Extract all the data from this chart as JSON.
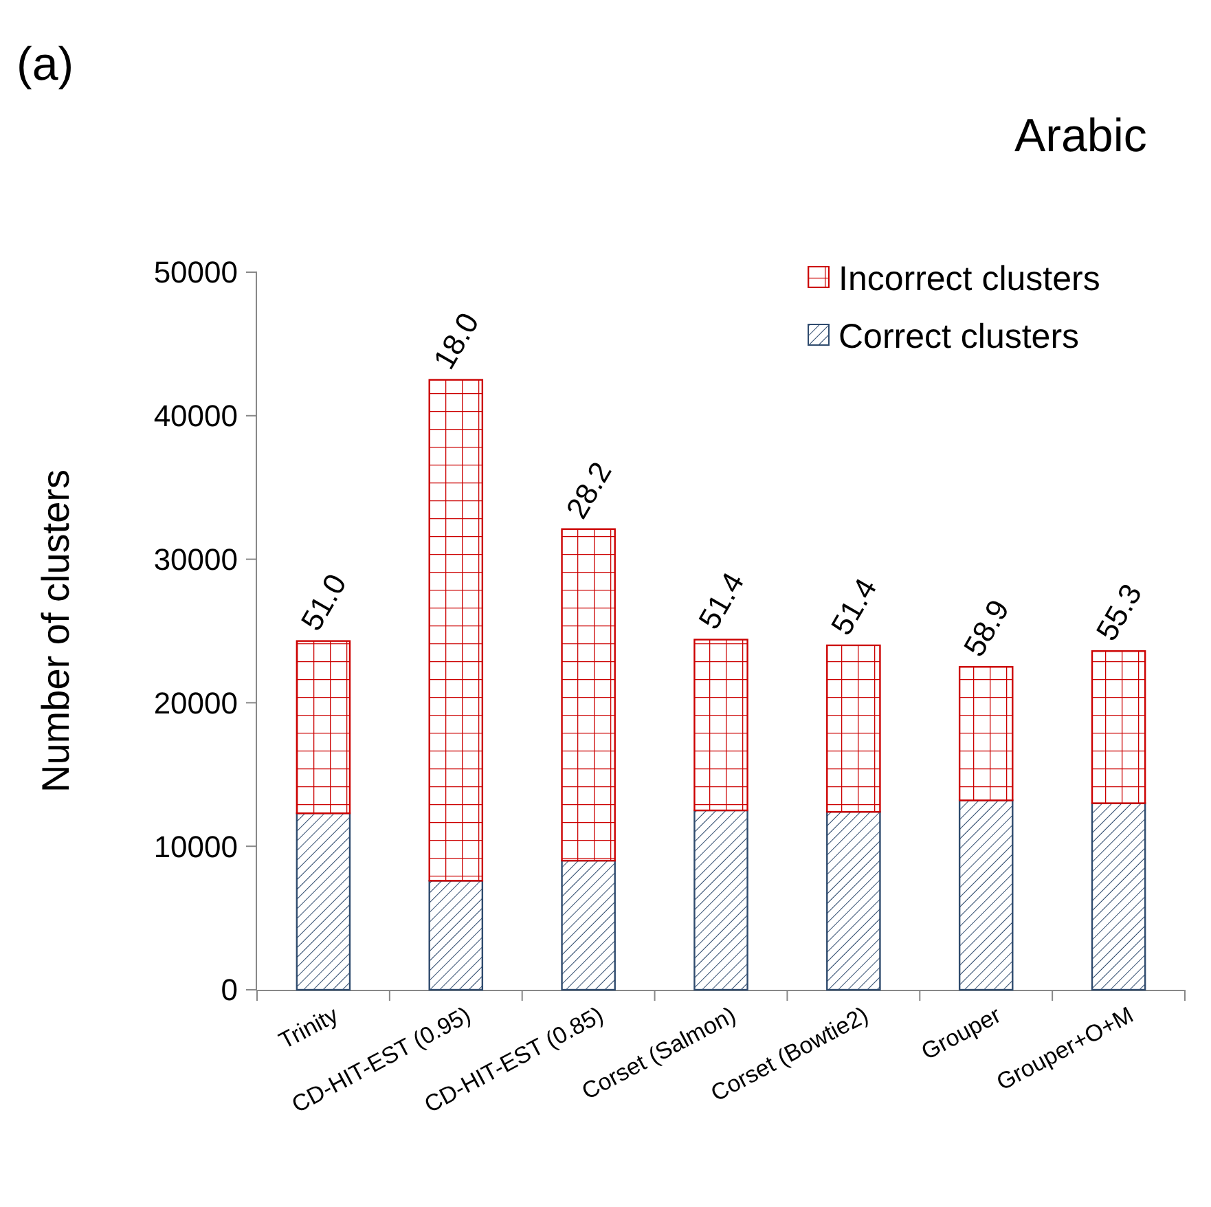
{
  "chart_data": {
    "type": "bar",
    "title": "Arabic",
    "ylabel": "Number of clusters",
    "stacked": true,
    "legend": "top right",
    "categories": [
      "Trinity",
      "CD-HIT-EST (0.95)",
      "CD-HIT-EST (0.85)",
      "Corset (Salmon)",
      "Corset (Bowtie2)",
      "Grouper",
      "Grouper+O+M"
    ],
    "series": [
      {
        "name": "Correct clusters",
        "color": "#2f4b6e",
        "values": [
          12300,
          7600,
          9000,
          12500,
          12400,
          13200,
          13000
        ]
      },
      {
        "name": "Incorrect clusters",
        "color": "#cc0000",
        "values": [
          12000,
          34900,
          23100,
          11900,
          11600,
          9300,
          10600
        ]
      }
    ],
    "ylim": [
      0,
      50000
    ],
    "yticks": [
      0,
      10000,
      20000,
      30000,
      40000,
      50000
    ],
    "grid": false,
    "annotations": [
      "(a)",
      {
        "text": "51.0",
        "x": "Trinity",
        "y": 24300
      },
      {
        "text": "18.0",
        "x": "CD-HIT-EST (0.95)",
        "y": 42500
      },
      {
        "text": "28.2",
        "x": "CD-HIT-EST (0.85)",
        "y": 32100
      },
      {
        "text": "51.4",
        "x": "Corset (Salmon)",
        "y": 24400
      },
      {
        "text": "51.4",
        "x": "Corset (Bowtie2)",
        "y": 24000
      },
      {
        "text": "58.9",
        "x": "Grouper",
        "y": 22500
      },
      {
        "text": "55.3",
        "x": "Grouper+O+M",
        "y": 23600
      }
    ]
  }
}
